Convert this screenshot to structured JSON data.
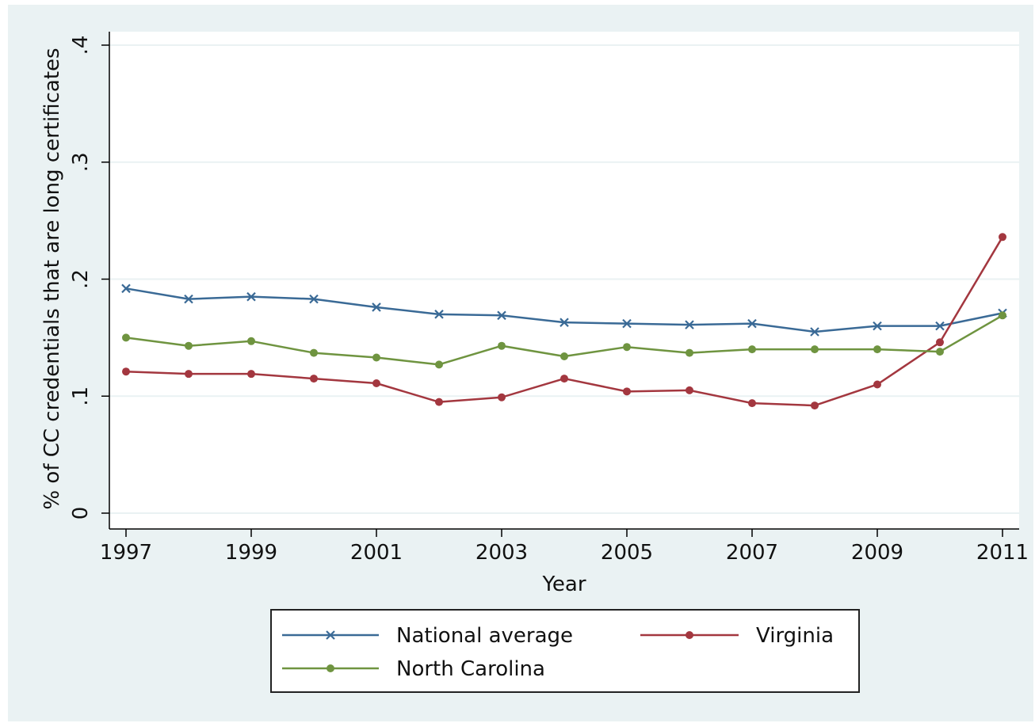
{
  "chart_data": {
    "type": "line",
    "xlabel": "Year",
    "ylabel": "% of CC credentials that are long certificates",
    "x": [
      1997,
      1998,
      1999,
      2000,
      2001,
      2002,
      2003,
      2004,
      2005,
      2006,
      2007,
      2008,
      2009,
      2010,
      2011
    ],
    "xticks": [
      1997,
      1999,
      2001,
      2003,
      2005,
      2007,
      2009,
      2011
    ],
    "xtick_labels": [
      "1997",
      "1999",
      "2001",
      "2003",
      "2005",
      "2007",
      "2009",
      "2011"
    ],
    "xlim": [
      1997,
      2011
    ],
    "ylim": [
      0,
      0.4
    ],
    "yticks": [
      0,
      0.1,
      0.2,
      0.3,
      0.4
    ],
    "ytick_labels": [
      "0",
      ".1",
      ".2",
      ".3",
      ".4"
    ],
    "grid": true,
    "legend_position": "bottom",
    "series": [
      {
        "name": "National average",
        "color": "#3a6a96",
        "marker": "x",
        "values": [
          0.192,
          0.183,
          0.185,
          0.183,
          0.176,
          0.17,
          0.169,
          0.163,
          0.162,
          0.161,
          0.162,
          0.155,
          0.16,
          0.16,
          0.171
        ]
      },
      {
        "name": "Virginia",
        "color": "#a3373f",
        "marker": "circle",
        "values": [
          0.121,
          0.119,
          0.119,
          0.115,
          0.111,
          0.095,
          0.099,
          0.115,
          0.104,
          0.105,
          0.094,
          0.092,
          0.11,
          0.146,
          0.236
        ]
      },
      {
        "name": "North Carolina",
        "color": "#6f9440",
        "marker": "circle",
        "values": [
          0.15,
          0.143,
          0.147,
          0.137,
          0.133,
          0.127,
          0.143,
          0.134,
          0.142,
          0.137,
          0.14,
          0.14,
          0.14,
          0.138,
          0.169
        ]
      }
    ],
    "legend_order": [
      "National average",
      "Virginia",
      "North Carolina"
    ]
  }
}
